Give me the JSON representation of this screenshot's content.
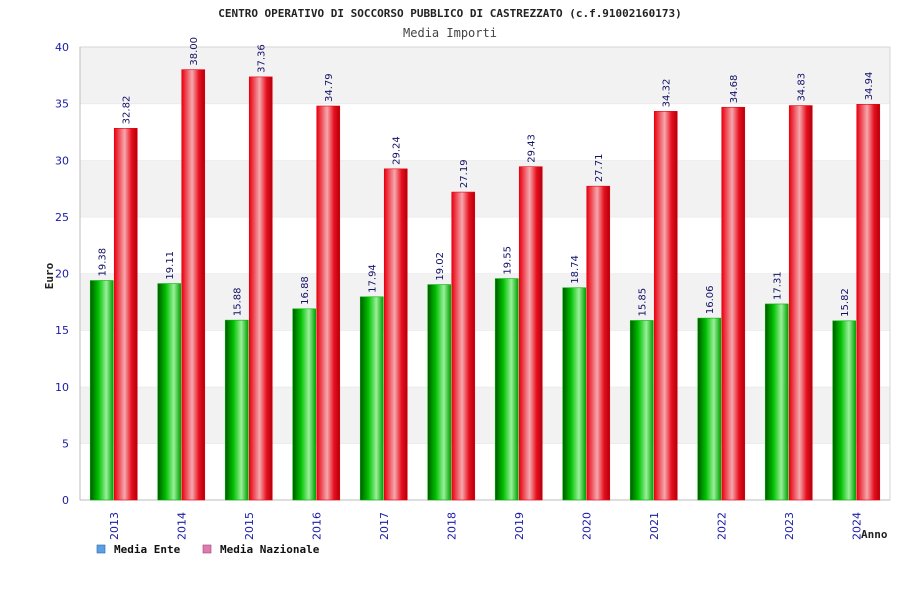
{
  "colors": {
    "series_ente": "#00b000",
    "series_nazionale": "#e8000f",
    "legend_ente": "#5aa0e8",
    "legend_nazionale": "#e07ab0",
    "band": "#f2f2f2",
    "tick_text": "#1a1aa6"
  },
  "chart_data": {
    "type": "bar",
    "title": "CENTRO OPERATIVO DI SOCCORSO PUBBLICO DI CASTREZZATO (c.f.91002160173)",
    "subtitle": "Media Importi",
    "xlabel": "Anno",
    "ylabel": "Euro",
    "ylim": [
      0,
      40
    ],
    "yticks": [
      "0",
      "5",
      "10",
      "15",
      "20",
      "25",
      "30",
      "35",
      "40"
    ],
    "grid": "horizontal alternating bands",
    "legend_position": "bottom-left",
    "categories": [
      "2013",
      "2014",
      "2015",
      "2016",
      "2017",
      "2018",
      "2019",
      "2020",
      "2021",
      "2022",
      "2023",
      "2024"
    ],
    "series": [
      {
        "name": "Media Ente",
        "values": [
          19.38,
          19.11,
          15.88,
          16.88,
          17.94,
          19.02,
          19.55,
          18.74,
          15.85,
          16.06,
          17.31,
          15.82
        ],
        "labels": [
          "19.38",
          "19.11",
          "15.88",
          "16.88",
          "17.94",
          "19.02",
          "19.55",
          "18.74",
          "15.85",
          "16.06",
          "17.31",
          "15.82"
        ]
      },
      {
        "name": "Media Nazionale",
        "values": [
          32.82,
          38.0,
          37.36,
          34.79,
          29.24,
          27.19,
          29.43,
          27.71,
          34.32,
          34.68,
          34.83,
          34.94
        ],
        "labels": [
          "32.82",
          "38.00",
          "37.36",
          "34.79",
          "29.24",
          "27.19",
          "29.43",
          "27.71",
          "34.32",
          "34.68",
          "34.83",
          "34.94"
        ]
      }
    ]
  }
}
